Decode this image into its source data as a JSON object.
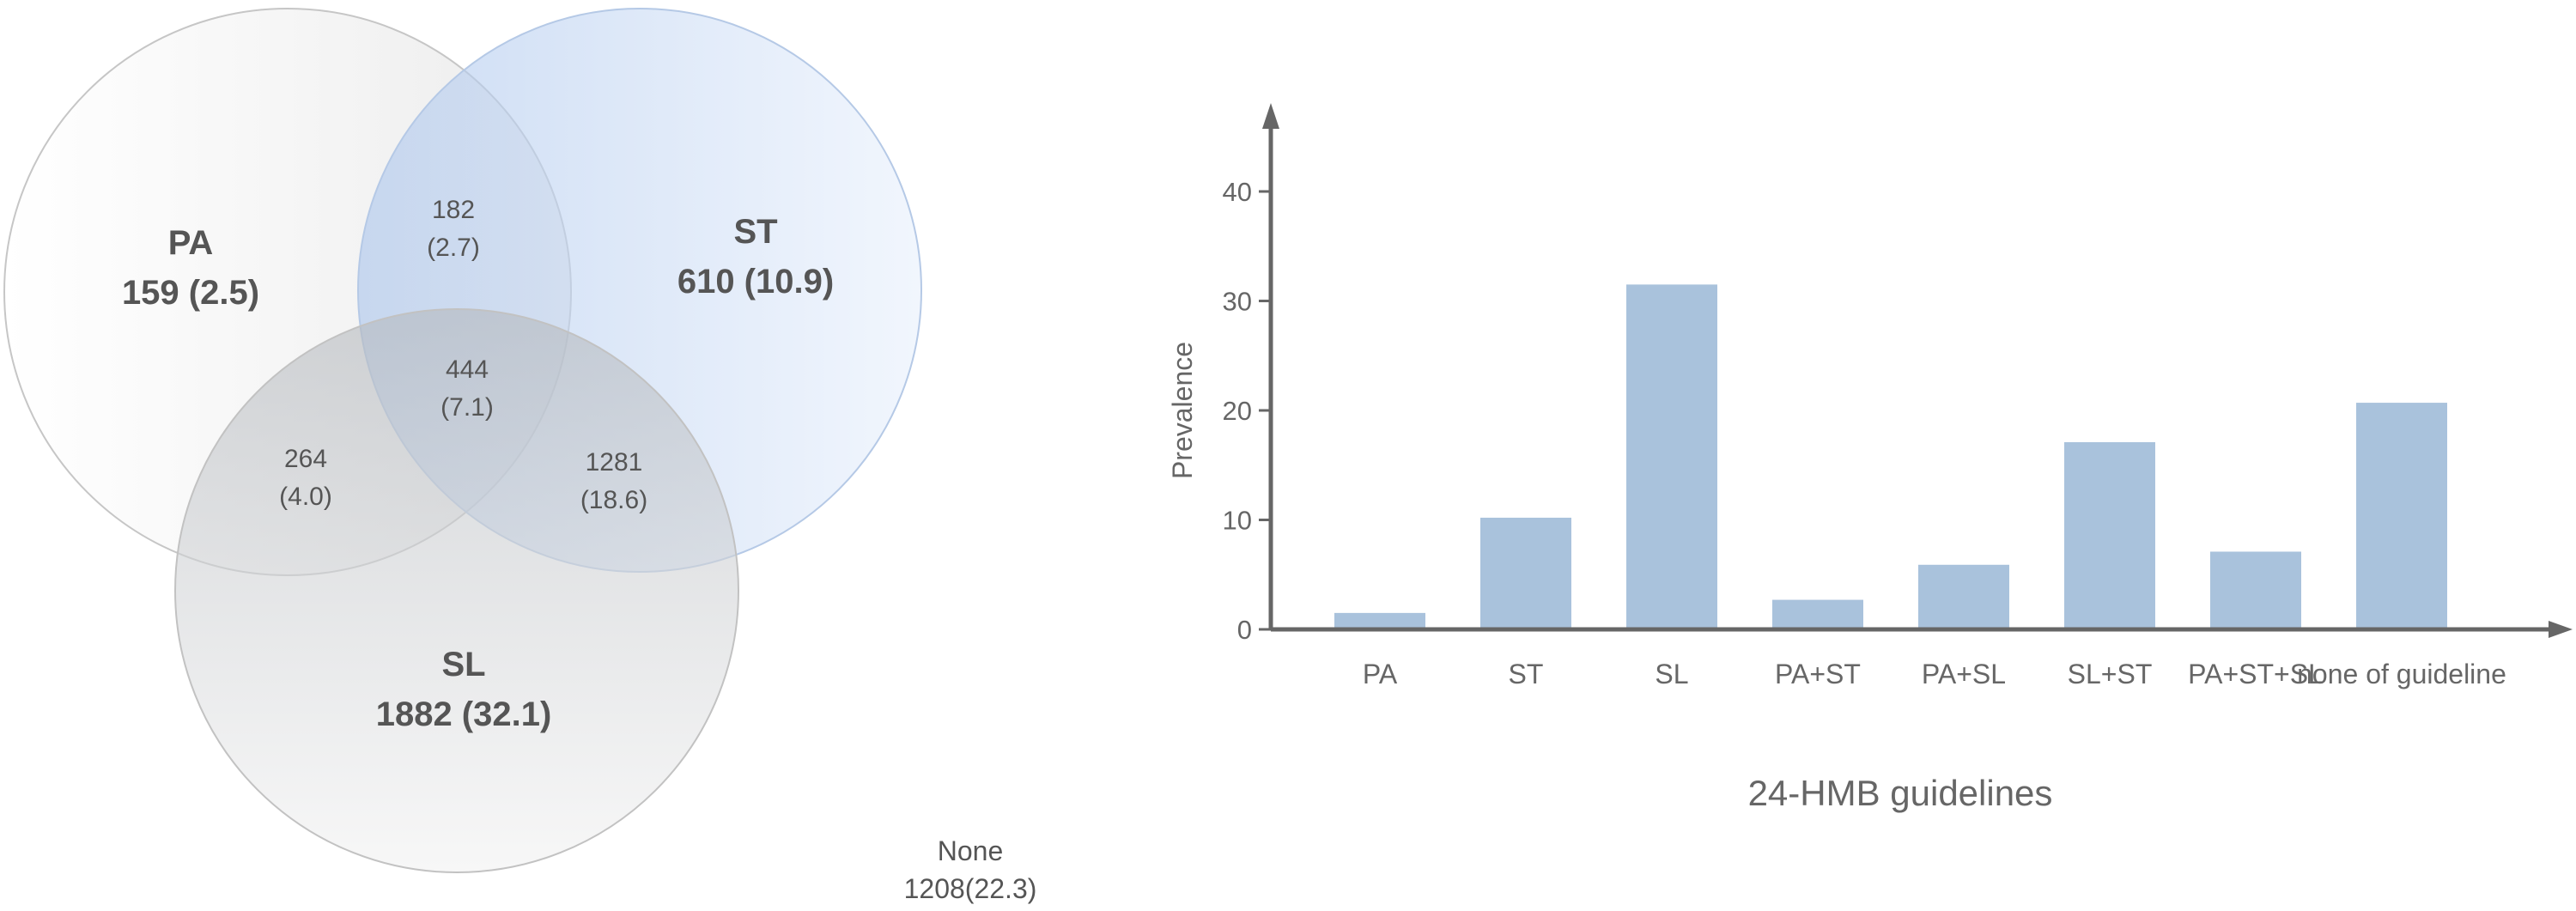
{
  "venn": {
    "sets": [
      {
        "label": "PA",
        "value": "159 (2.5)",
        "color": "#f5f5f5"
      },
      {
        "label": "ST",
        "value": "610 (10.9)",
        "color": "#b7d0f0"
      },
      {
        "label": "SL",
        "value": "1882 (32.1)",
        "color": "#cfd2d6"
      }
    ],
    "intersections": {
      "pa_st": {
        "count": "182",
        "pct": "(2.7)"
      },
      "pa_st_sl": {
        "count": "444",
        "pct": "(7.1)"
      },
      "pa_sl": {
        "count": "264",
        "pct": "(4.0)"
      },
      "st_sl": {
        "count": "1281",
        "pct": "(18.6)"
      }
    },
    "none": {
      "label": "None",
      "value": "1208(22.3)"
    }
  },
  "chart_data": {
    "type": "bar",
    "categories": [
      "PA",
      "ST",
      "SL",
      "PA+ST",
      "PA+SL",
      "SL+ST",
      "PA+ST+SL",
      "none of guideline"
    ],
    "values": [
      1.5,
      10.2,
      31.5,
      2.7,
      5.9,
      17.1,
      7.1,
      20.7
    ],
    "xlabel": "24-HMB guidelines",
    "ylabel": "Prevalence",
    "ylim": [
      0,
      45
    ],
    "yticks": [
      "0",
      "10",
      "20",
      "30",
      "40"
    ],
    "bar_color": "#a9c2dc",
    "axis_color": "#666666",
    "grid": false
  }
}
